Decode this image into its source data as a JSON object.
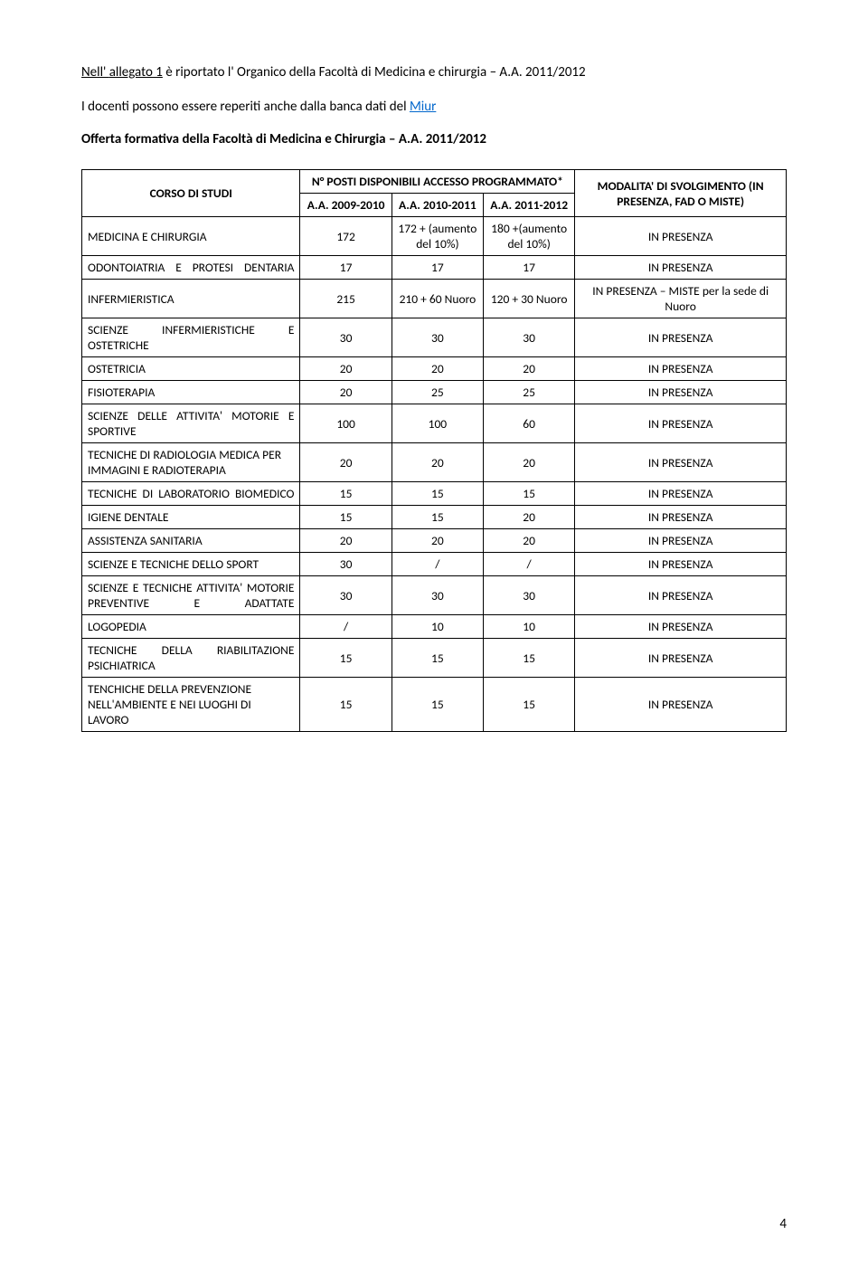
{
  "intro": {
    "prefix": "Nell' ",
    "allegato": "allegato 1",
    "rest": " è riportato l' Organico della Facoltà di Medicina e chirurgia – A.A. 2011/2012"
  },
  "docenti": {
    "text": "I docenti possono essere reperiti anche dalla banca dati del ",
    "link_label": "Miur"
  },
  "offerta": "Offerta formativa della Facoltà di Medicina e Chirurgia – A.A. 2011/2012",
  "header": {
    "corso": "CORSO DI STUDI",
    "posti": "N° POSTI DISPONIBILI ACCESSO PROGRAMMATO*",
    "modalita": "MODALITA' DI SVOLGIMENTO (IN PRESENZA, FAD O MISTE)",
    "y1": "A.A. 2009-2010",
    "y2": "A.A. 2010-2011",
    "y3": "A.A. 2011-2012"
  },
  "rows": [
    {
      "label": "MEDICINA E CHIRURGIA",
      "justify": false,
      "y1": "172",
      "y2": "172 + (aumento del 10%)",
      "y3": "180 +(aumento del 10%)",
      "mod": "IN PRESENZA"
    },
    {
      "label": "ODONTOIATRIA E PROTESI DENTARIA",
      "justify": true,
      "y1": "17",
      "y2": "17",
      "y3": "17",
      "mod": "IN PRESENZA"
    },
    {
      "label": "INFERMIERISTICA",
      "justify": false,
      "y1": "215",
      "y2": "210 + 60 Nuoro",
      "y3": "120 + 30 Nuoro",
      "mod": "IN PRESENZA – MISTE per la sede di Nuoro"
    },
    {
      "label": "SCIENZE INFERMIERISTICHE E OSTETRICHE",
      "justify": true,
      "y1": "30",
      "y2": "30",
      "y3": "30",
      "mod": "IN PRESENZA"
    },
    {
      "label": "OSTETRICIA",
      "justify": false,
      "y1": "20",
      "y2": "20",
      "y3": "20",
      "mod": "IN PRESENZA"
    },
    {
      "label": "FISIOTERAPIA",
      "justify": false,
      "y1": "20",
      "y2": "25",
      "y3": "25",
      "mod": "IN PRESENZA"
    },
    {
      "label": "SCIENZE DELLE ATTIVITA' MOTORIE E SPORTIVE",
      "justify": true,
      "y1": "100",
      "y2": "100",
      "y3": "60",
      "mod": "IN PRESENZA"
    },
    {
      "label": "TECNICHE DI RADIOLOGIA MEDICA PER IMMAGINI E RADIOTERAPIA",
      "justify": false,
      "y1": "20",
      "y2": "20",
      "y3": "20",
      "mod": "IN PRESENZA"
    },
    {
      "label": "TECNICHE DI LABORATORIO BIOMEDICO",
      "justify": true,
      "y1": "15",
      "y2": "15",
      "y3": "15",
      "mod": "IN PRESENZA"
    },
    {
      "label": "IGIENE DENTALE",
      "justify": false,
      "y1": "15",
      "y2": "15",
      "y3": "20",
      "mod": "IN PRESENZA"
    },
    {
      "label": "ASSISTENZA SANITARIA",
      "justify": false,
      "y1": "20",
      "y2": "20",
      "y3": "20",
      "mod": "IN PRESENZA"
    },
    {
      "label": "SCIENZE E TECNICHE DELLO SPORT",
      "justify": false,
      "y1": "30",
      "y2": "/",
      "y3": "/",
      "mod": "IN PRESENZA"
    },
    {
      "label": "SCIENZE E TECNICHE ATTIVITA' MOTORIE PREVENTIVE E ADATTATE",
      "justify": true,
      "y1": "30",
      "y2": "30",
      "y3": "30",
      "mod": "IN PRESENZA"
    },
    {
      "label": "LOGOPEDIA",
      "justify": false,
      "y1": "/",
      "y2": "10",
      "y3": "10",
      "mod": "IN PRESENZA"
    },
    {
      "label": "TECNICHE DELLA RIABILITAZIONE PSICHIATRICA",
      "justify": true,
      "y1": "15",
      "y2": "15",
      "y3": "15",
      "mod": "IN PRESENZA"
    },
    {
      "label": "TENCHICHE DELLA PREVENZIONE NELL'AMBIENTE E NEI LUOGHI DI LAVORO",
      "justify": false,
      "y1": "15",
      "y2": "15",
      "y3": "15",
      "mod": "IN PRESENZA"
    }
  ],
  "page_number": "4"
}
